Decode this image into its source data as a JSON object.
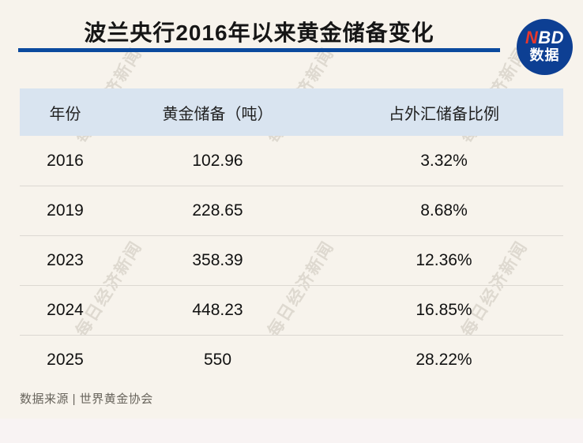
{
  "header": {
    "title": "波兰央行2016年以来黄金储备变化",
    "rule_color": "#0b4a9e",
    "logo": {
      "top_red": "N",
      "top_white": "BD",
      "bottom": "数据",
      "circle_color": "#0d3f93",
      "accent_color": "#e8382d"
    }
  },
  "chart_data": {
    "type": "table",
    "title": "波兰央行2016年以来黄金储备变化",
    "columns": [
      "年份",
      "黄金储备（吨）",
      "占外汇储备比例"
    ],
    "rows": [
      [
        "2016",
        "102.96",
        "3.32%"
      ],
      [
        "2019",
        "228.65",
        "8.68%"
      ],
      [
        "2023",
        "358.39",
        "12.36%"
      ],
      [
        "2024",
        "448.23",
        "16.85%"
      ],
      [
        "2025",
        "550",
        "28.22%"
      ]
    ],
    "series_numeric": {
      "years": [
        2016,
        2019,
        2023,
        2024,
        2025
      ],
      "gold_reserves_tonnes": [
        102.96,
        228.65,
        358.39,
        448.23,
        550
      ],
      "fx_reserve_share_pct": [
        3.32,
        8.68,
        12.36,
        16.85,
        28.22
      ]
    },
    "header_bg": "#d9e4f0",
    "source": "数据来源 | 世界黄金协会"
  },
  "footer": {
    "source": "数据来源 | 世界黄金协会"
  },
  "watermark": {
    "text": "每日经济新闻"
  }
}
